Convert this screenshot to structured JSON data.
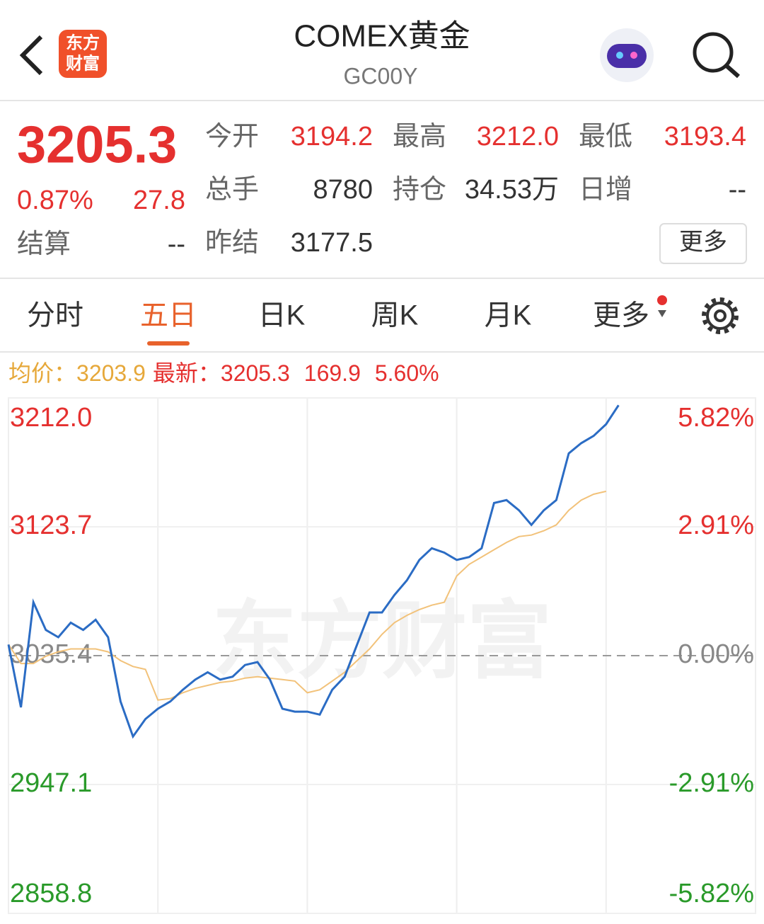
{
  "header": {
    "logo_lines": [
      "东方",
      "财富"
    ],
    "title": "COMEX黄金",
    "code": "GC00Y"
  },
  "quote": {
    "price": "3205.3",
    "change_pct": "0.87%",
    "change": "27.8",
    "settle_label": "结算",
    "settle": "--",
    "fields": [
      {
        "label": "今开",
        "value": "3194.2"
      },
      {
        "label": "最高",
        "value": "3212.0"
      },
      {
        "label": "最低",
        "value": "3193.4"
      },
      {
        "label": "总手",
        "value": "8780"
      },
      {
        "label": "持仓",
        "value": "34.53万"
      },
      {
        "label": "日增",
        "value": "--"
      },
      {
        "label": "昨结",
        "value": "3177.5"
      }
    ],
    "more": "更多"
  },
  "tabs": [
    "分时",
    "五日",
    "日K",
    "周K",
    "月K",
    "更多"
  ],
  "info": {
    "avg_label": "均价：",
    "avg": "3203.9",
    "last_label": "最新：",
    "last": "3205.3",
    "change": "169.9",
    "change_pct": "5.60%"
  },
  "chart": {
    "type": "line",
    "watermark": "东方财富",
    "xlim": [
      0,
      60
    ],
    "xticks": [
      12,
      24,
      36,
      48
    ],
    "ylim": [
      2858.8,
      3212.0
    ],
    "yticks": [
      {
        "value": 3212.0,
        "label": "3212.0"
      },
      3123.7,
      3035.4,
      2947.1,
      2858.8
    ],
    "y2lim": [
      -5.82,
      5.82
    ],
    "y2ticks": [
      {
        "value": 5.82,
        "label": "5.82%"
      },
      {
        "value": 2.91,
        "label": "2.91%"
      },
      {
        "value": 0,
        "label": "0.00%"
      },
      {
        "value": -2.91,
        "label": "-2.91%"
      },
      {
        "value": -5.82,
        "label": "-5.82%"
      }
    ],
    "series": [
      {
        "name": "最新",
        "color": "#2b6cc4",
        "x": [
          0,
          1,
          2,
          3,
          4,
          5,
          6,
          7,
          8,
          9,
          10,
          11,
          12,
          13,
          14,
          15,
          16,
          17,
          18,
          19,
          20,
          21,
          22,
          23,
          24,
          25,
          26,
          27,
          28,
          29,
          30,
          31,
          32,
          33,
          34,
          35,
          36,
          37,
          38,
          39,
          40,
          41,
          42,
          43,
          44,
          45,
          46,
          47,
          48,
          49
        ],
        "values": [
          3043,
          3000,
          3072,
          3053,
          3048,
          3058,
          3053,
          3060,
          3048,
          3004,
          2980,
          2992,
          2999,
          3004,
          3012,
          3019,
          3024,
          3019,
          3021,
          3029,
          3031,
          3019,
          2999,
          2997,
          2997,
          2995,
          3012,
          3021,
          3043,
          3065,
          3065,
          3077,
          3087,
          3101,
          3109,
          3106,
          3101,
          3103,
          3109,
          3140,
          3142,
          3135,
          3125,
          3135,
          3142,
          3174,
          3181,
          3186,
          3194,
          3207
        ]
      },
      {
        "name": "均价",
        "color": "#f2c27a",
        "x": [
          0,
          1,
          2,
          3,
          4,
          5,
          6,
          7,
          8,
          9,
          10,
          11,
          12,
          13,
          14,
          15,
          16,
          17,
          18,
          19,
          20,
          21,
          22,
          23,
          24,
          25,
          26,
          27,
          28,
          29,
          30,
          31,
          32,
          33,
          34,
          35,
          36,
          37,
          38,
          39,
          40,
          41,
          42,
          43,
          44,
          45,
          46,
          47,
          48
        ],
        "values": [
          3043,
          3030,
          3030,
          3035,
          3038,
          3040,
          3040,
          3040,
          3038,
          3032,
          3028,
          3026,
          3005,
          3006,
          3010,
          3013,
          3015,
          3017,
          3018,
          3020,
          3021,
          3020,
          3019,
          3018,
          3010,
          3012,
          3018,
          3024,
          3032,
          3040,
          3050,
          3058,
          3063,
          3067,
          3070,
          3072,
          3090,
          3098,
          3103,
          3108,
          3113,
          3117,
          3118,
          3121,
          3125,
          3135,
          3142,
          3146,
          3148
        ]
      }
    ]
  }
}
